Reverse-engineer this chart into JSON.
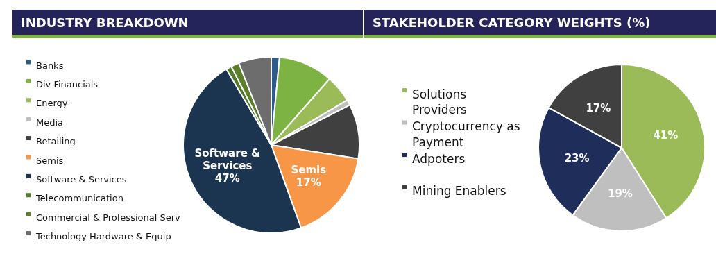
{
  "chart_data": [
    {
      "type": "pie",
      "title": "INDUSTRY BREAKDOWN",
      "legend": "left",
      "categories": [
        "Banks",
        "Div Financials",
        "Energy",
        "Media",
        "Retailing",
        "Semis",
        "Software & Services",
        "Telecommunication",
        "Commercial & Professional Serv",
        "Technology Hardware & Equip"
      ],
      "values": [
        1.5,
        10,
        5,
        1,
        10,
        17,
        47,
        1,
        1.5,
        6
      ],
      "colors": [
        "#2e5c8a",
        "#7cb342",
        "#9bbb59",
        "#bfbfbf",
        "#404040",
        "#f79646",
        "#1b3550",
        "#4f7a28",
        "#5c7f2c",
        "#6d6d6d"
      ],
      "value_labels": [
        null,
        null,
        null,
        null,
        null,
        "17%",
        "47%",
        null,
        null,
        null
      ]
    },
    {
      "type": "pie",
      "title": "STAKEHOLDER CATEGORY WEIGHTS (%)",
      "legend": "left",
      "categories": [
        "Solutions Providers",
        "Cryptocurrency as Payment",
        "Adpoters",
        "Mining Enablers"
      ],
      "values": [
        41,
        19,
        23,
        17
      ],
      "colors": [
        "#9bbb59",
        "#bfbfbf",
        "#1f2d5a",
        "#404040"
      ],
      "value_labels": [
        "41%",
        "19%",
        "23%",
        "17%"
      ]
    }
  ]
}
